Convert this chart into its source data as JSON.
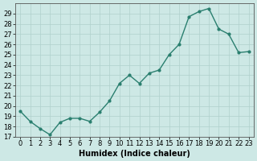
{
  "x": [
    0,
    1,
    2,
    3,
    4,
    5,
    6,
    7,
    8,
    9,
    10,
    11,
    12,
    13,
    14,
    15,
    16,
    17,
    18,
    19,
    20,
    21,
    22,
    23
  ],
  "y": [
    19.5,
    18.5,
    17.8,
    17.2,
    18.4,
    18.8,
    18.8,
    18.5,
    19.4,
    20.5,
    22.2,
    23.0,
    22.2,
    23.2,
    23.5,
    25.0,
    26.0,
    28.7,
    29.2,
    29.5,
    27.5,
    27.0,
    25.2,
    25.3
  ],
  "xlabel": "Humidex (Indice chaleur)",
  "ylabel": "",
  "xlim": [
    -0.5,
    23.5
  ],
  "ylim": [
    17,
    30
  ],
  "yticks": [
    17,
    18,
    19,
    20,
    21,
    22,
    23,
    24,
    25,
    26,
    27,
    28,
    29
  ],
  "xticks": [
    0,
    1,
    2,
    3,
    4,
    5,
    6,
    7,
    8,
    9,
    10,
    11,
    12,
    13,
    14,
    15,
    16,
    17,
    18,
    19,
    20,
    21,
    22,
    23
  ],
  "line_color": "#2a7f6f",
  "bg_color": "#cde8e5",
  "grid_color": "#b0d0cc",
  "marker": "o",
  "marker_size": 2,
  "line_width": 1.0,
  "xlabel_fontsize": 7,
  "tick_fontsize": 6
}
